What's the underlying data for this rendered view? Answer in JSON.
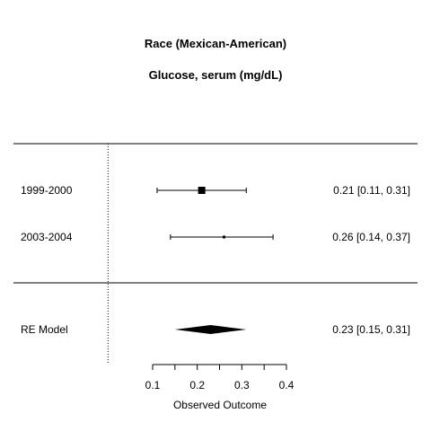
{
  "chart_data": {
    "type": "forest",
    "title": "Race (Mexican-American)",
    "subtitle": "Glucose, serum (mg/dL)",
    "xlabel": "Observed Outcome",
    "xlim": [
      0.1,
      0.4
    ],
    "x_ticks": [
      0.1,
      0.15,
      0.2,
      0.25,
      0.3,
      0.35,
      0.4
    ],
    "x_tick_labels": [
      "0.1",
      "",
      "0.2",
      "",
      "0.3",
      "",
      "0.4"
    ],
    "reference_line": 0,
    "studies": [
      {
        "label": "1999-2000",
        "estimate": 0.21,
        "ci_lower": 0.11,
        "ci_upper": 0.31,
        "text": "0.21 [0.11, 0.31]",
        "weight": "large"
      },
      {
        "label": "2003-2004",
        "estimate": 0.26,
        "ci_lower": 0.14,
        "ci_upper": 0.37,
        "text": "0.26 [0.14, 0.37]",
        "weight": "small"
      }
    ],
    "summary": {
      "label": "RE Model",
      "estimate": 0.23,
      "ci_lower": 0.15,
      "ci_upper": 0.31,
      "text": "0.23 [0.15, 0.31]"
    }
  }
}
